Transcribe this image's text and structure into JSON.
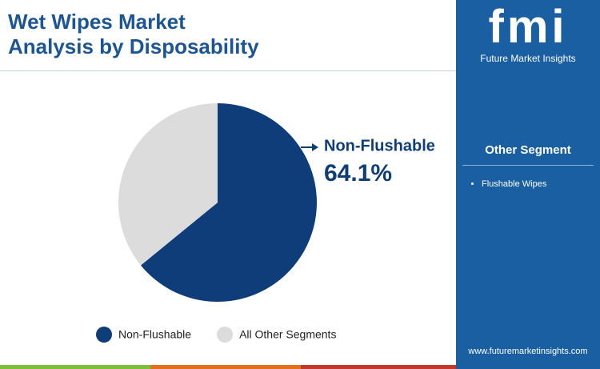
{
  "chart_data": {
    "type": "pie",
    "title": "Wet Wipes Market\nAnalysis by Disposability",
    "categories": [
      "Non-Flushable",
      "All Other Segments"
    ],
    "values": [
      64.1,
      35.9
    ],
    "value_labels": [
      "64.1%",
      null
    ],
    "colors": [
      "#0f3d7a",
      "#dcdcdc"
    ],
    "legend": "bottom"
  },
  "logo": {
    "mark": "fmi",
    "name": "Future Market Insights"
  },
  "sidebar": {
    "heading": "Other Segment",
    "items": [
      "Flushable Wipes"
    ]
  },
  "footer_url": "www.futuremarketinsights.com"
}
